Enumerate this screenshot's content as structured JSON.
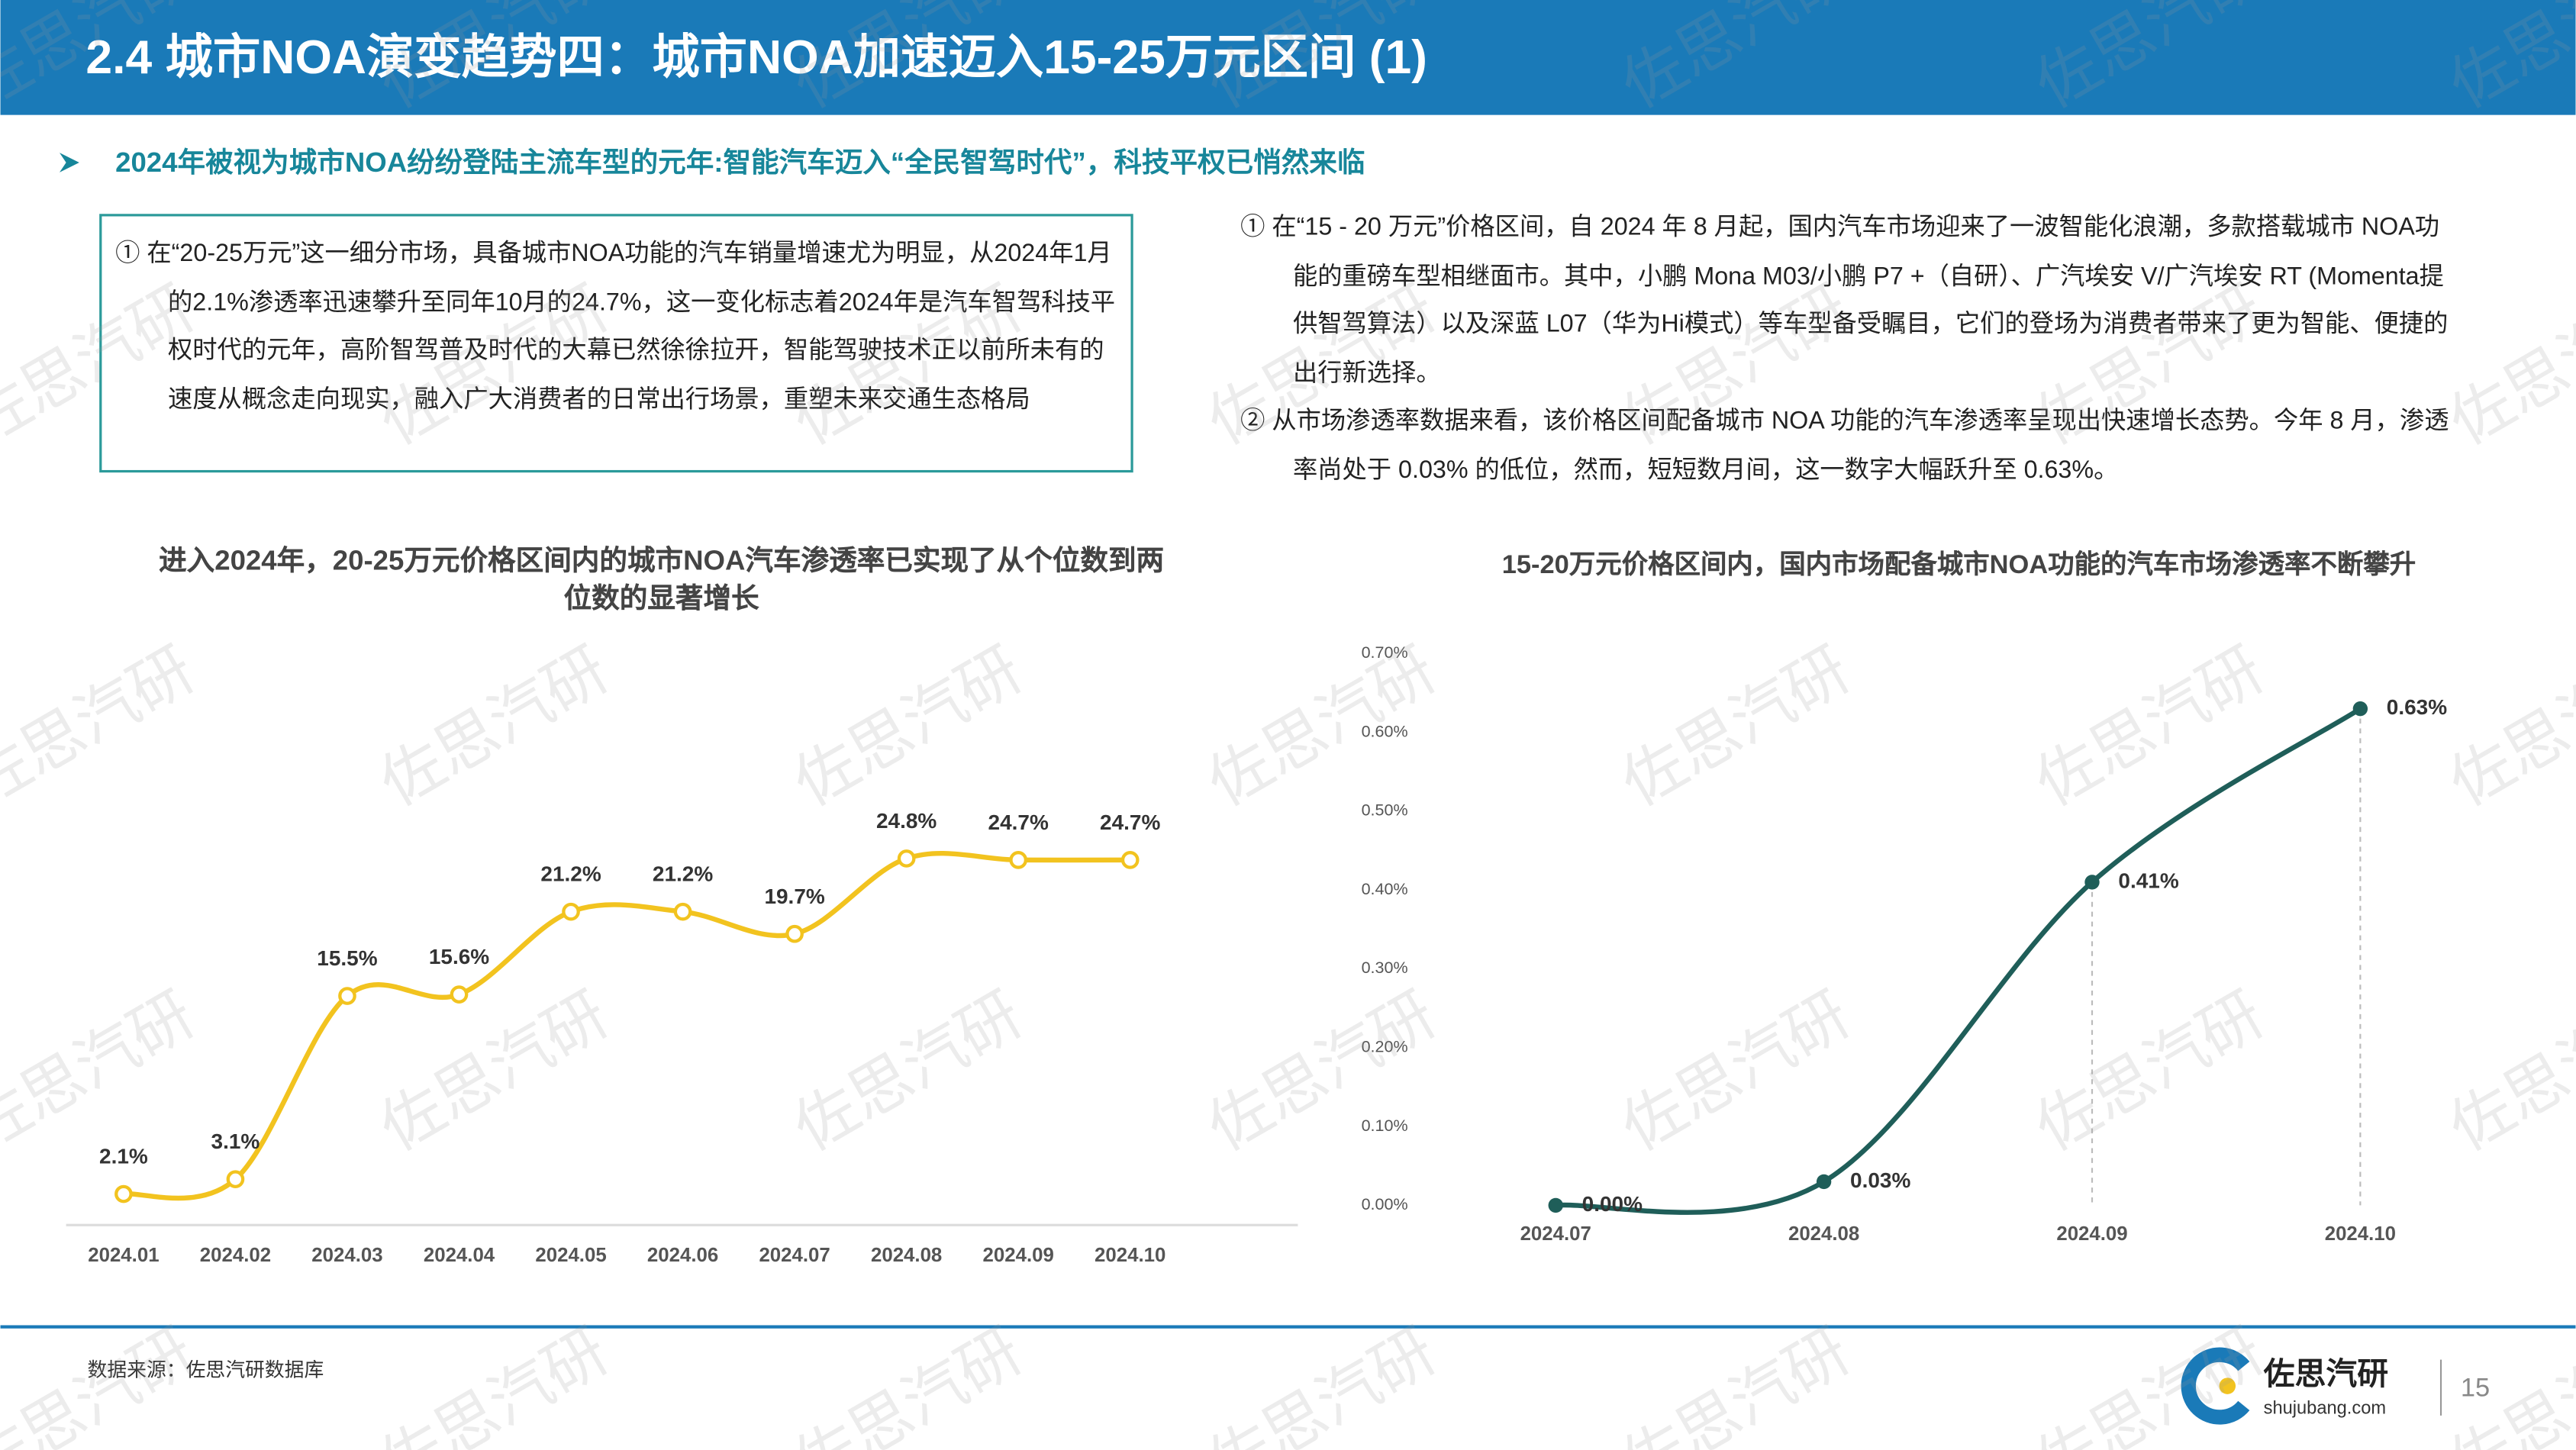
{
  "header": {
    "title": "2.4 城市NOA演变趋势四：城市NOA加速迈入15-25万元区间 (1)"
  },
  "subtitle": "2024年被视为城市NOA纷纷登陆主流车型的元年:智能汽车迈入“全民智驾时代”，科技平权已悄然来临",
  "left_note": "① 在“20-25万元”这一细分市场，具备城市NOA功能的汽车销量增速尤为明显，从2024年1月的2.1%渗透率迅速攀升至同年10月的24.7%，这一变化标志着2024年是汽车智驾科技平权时代的元年，高阶智驾普及时代的大幕已然徐徐拉开，智能驾驶技术正以前所未有的速度从概念走向现实，融入广大消费者的日常出行场景，重塑未来交通生态格局",
  "right_notes": [
    "① 在“15 - 20 万元”价格区间，自 2024 年 8 月起，国内汽车市场迎来了一波智能化浪潮，多款搭载城市 NOA功能的重磅车型相继面市。其中，小鹏 Mona M03/小鹏 P7 +（自研）、广汽埃安 V/广汽埃安 RT (Momenta提供智驾算法）以及深蓝 L07（华为Hi模式）等车型备受瞩目，它们的登场为消费者带来了更为智能、便捷的出行新选择。",
    "② 从市场渗透率数据来看，该价格区间配备城市 NOA 功能的汽车渗透率呈现出快速增长态势。今年 8 月，渗透率尚处于 0.03% 的低位，然而，短短数月间，这一数字大幅跃升至 0.63%。"
  ],
  "chart_data": [
    {
      "type": "line",
      "title": "进入2024年，20-25万元价格区间内的城市NOA汽车渗透率已实现了从个位数到两位数的显著增长",
      "categories": [
        "2024.01",
        "2024.02",
        "2024.03",
        "2024.04",
        "2024.05",
        "2024.06",
        "2024.07",
        "2024.08",
        "2024.09",
        "2024.10"
      ],
      "values": [
        2.1,
        3.1,
        15.5,
        15.6,
        21.2,
        21.2,
        19.7,
        24.8,
        24.7,
        24.7
      ],
      "value_labels": [
        "2.1%",
        "3.1%",
        "15.5%",
        "15.6%",
        "21.2%",
        "21.2%",
        "19.7%",
        "24.8%",
        "24.7%",
        "24.7%"
      ],
      "color": "#f2c31f"
    },
    {
      "type": "line",
      "title": "15-20万元价格区间内，国内市场配备城市NOA功能的汽车市场渗透率不断攀升",
      "categories": [
        "2024.07",
        "2024.08",
        "2024.09",
        "2024.10"
      ],
      "values": [
        0.0,
        0.03,
        0.41,
        0.63
      ],
      "value_labels": [
        "0.00%",
        "0.03%",
        "0.41%",
        "0.63%"
      ],
      "color": "#1f5e59",
      "ylim": [
        0,
        0.7
      ],
      "yticks": [
        {
          "value": 0,
          "label": "0.00%"
        },
        {
          "value": 0.1,
          "label": "0.10%"
        },
        {
          "value": 0.2,
          "label": "0.20%"
        },
        {
          "value": 0.3,
          "label": "0.30%"
        },
        {
          "value": 0.4,
          "label": "0.40%"
        },
        {
          "value": 0.5,
          "label": "0.50%"
        },
        {
          "value": 0.6,
          "label": "0.60%"
        },
        {
          "value": 0.7,
          "label": "0.70%"
        }
      ]
    }
  ],
  "footer": {
    "source": "数据来源：佐思汽研数据库",
    "brand": "佐思汽研",
    "site": "shujubang.com",
    "page": 15
  },
  "watermark": "佐思汽研"
}
